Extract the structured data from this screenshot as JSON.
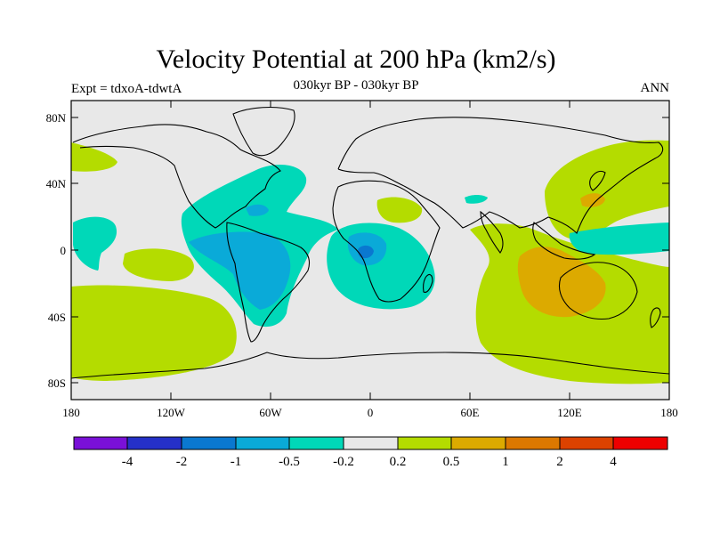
{
  "title": "Velocity Potential at 200 hPa (km2/s)",
  "subtitle_left": "Expt = tdxoA-tdwtA",
  "subtitle_center": "030kyr BP - 030kyr BP",
  "subtitle_right": "ANN",
  "lat_ticks": [
    "80N",
    "40N",
    "0",
    "40S",
    "80S"
  ],
  "lon_ticks": [
    "180",
    "120W",
    "60W",
    "0",
    "60E",
    "120E",
    "180"
  ],
  "colorbar": {
    "colors": [
      "#7a10d8",
      "#2530c8",
      "#0a78d0",
      "#0aaad8",
      "#00d8b8",
      "#e8e8e8",
      "#b4dc00",
      "#dcaa00",
      "#dc7800",
      "#dc4200",
      "#ee0000"
    ],
    "labels": [
      "-4",
      "-2",
      "-1",
      "-0.5",
      "-0.2",
      "0.2",
      "0.5",
      "1",
      "2",
      "4"
    ]
  },
  "map": {
    "background_color": "#e8e8e8",
    "lat_range": [
      -90,
      90
    ],
    "lon_range": [
      -180,
      180
    ]
  }
}
